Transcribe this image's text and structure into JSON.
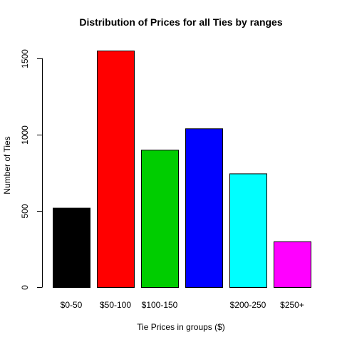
{
  "chart_data": {
    "type": "bar",
    "title": "Distribution of Prices for all Ties by ranges",
    "xlabel": "Tie Prices in groups ($)",
    "ylabel": "Number of Ties",
    "categories": [
      "$0-50",
      "$50-100",
      "$100-150",
      "",
      "$200-250",
      "$250+"
    ],
    "values": [
      520,
      1550,
      900,
      1040,
      745,
      300
    ],
    "colors": [
      "#000000",
      "#ff0000",
      "#00cd00",
      "#0000ff",
      "#00ffff",
      "#ff00ff"
    ],
    "bar_border_color": "#000000",
    "ylim": [
      0,
      1550
    ],
    "yticks": [
      0,
      500,
      1000,
      1500
    ],
    "ytick_labels": [
      "0",
      "500",
      "1000",
      "1500"
    ],
    "grid": false,
    "legend": "none"
  }
}
